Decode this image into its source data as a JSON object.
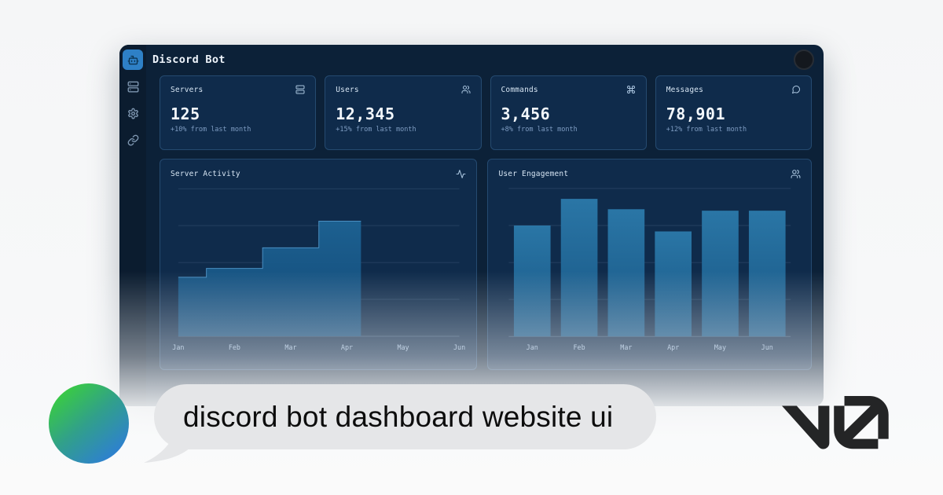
{
  "window": {
    "title": "Discord Bot"
  },
  "sidebar": {
    "items": [
      {
        "icon": "bot-icon",
        "active": true
      },
      {
        "icon": "server-icon",
        "active": false
      },
      {
        "icon": "settings-icon",
        "active": false
      },
      {
        "icon": "link-icon",
        "active": false
      }
    ]
  },
  "stats": [
    {
      "label": "Servers",
      "icon": "server-icon",
      "value": "125",
      "delta": "+10% from last month"
    },
    {
      "label": "Users",
      "icon": "users-icon",
      "value": "12,345",
      "delta": "+15% from last month"
    },
    {
      "label": "Commands",
      "icon": "command-icon",
      "value": "3,456",
      "delta": "+8% from last month"
    },
    {
      "label": "Messages",
      "icon": "message-icon",
      "value": "78,901",
      "delta": "+12% from last month"
    }
  ],
  "chart_data": [
    {
      "id": "area",
      "type": "area",
      "title": "Server Activity",
      "icon": "activity-icon",
      "categories": [
        "Jan",
        "Feb",
        "Mar",
        "Apr",
        "May",
        "Jun"
      ],
      "values": [
        40,
        46,
        60,
        78,
        null,
        null
      ],
      "ylim": [
        0,
        100
      ],
      "grid": true,
      "legend": "none",
      "note": "step-after area, series ends just past Apr",
      "fill_top": "#1d6394",
      "fill_bottom": "#124a78",
      "stroke": "#4a8fc2"
    },
    {
      "id": "bars",
      "type": "bar",
      "title": "User Engagement",
      "icon": "users-icon",
      "categories": [
        "Jan",
        "Feb",
        "Mar",
        "Apr",
        "May",
        "Jun"
      ],
      "values": [
        75,
        93,
        86,
        71,
        85,
        85
      ],
      "ylim": [
        0,
        100
      ],
      "grid": true,
      "legend": "none",
      "fill_top": "#2a76a6",
      "fill_bottom": "#175583"
    }
  ],
  "prompt_bubble": {
    "text": "discord bot dashboard website ui"
  },
  "branding": {
    "logo": "v0"
  },
  "colors": {
    "page_bg": "#f6f7f8",
    "dashboard_bg": "#0c2138",
    "sidebar_bg": "#0b1c2f",
    "card_bg": "#0f2b4b",
    "card_border": "#254a70",
    "accent_active": "#2e80c6",
    "bar_fill": "#1d6396",
    "text_primary": "#f3f8fd",
    "text_muted": "#7e9cc2",
    "bubble_bg": "#e5e6e8",
    "avatar_gradient": [
      "#3acc41",
      "#2e7fd3"
    ],
    "logo_color": "#242526"
  }
}
